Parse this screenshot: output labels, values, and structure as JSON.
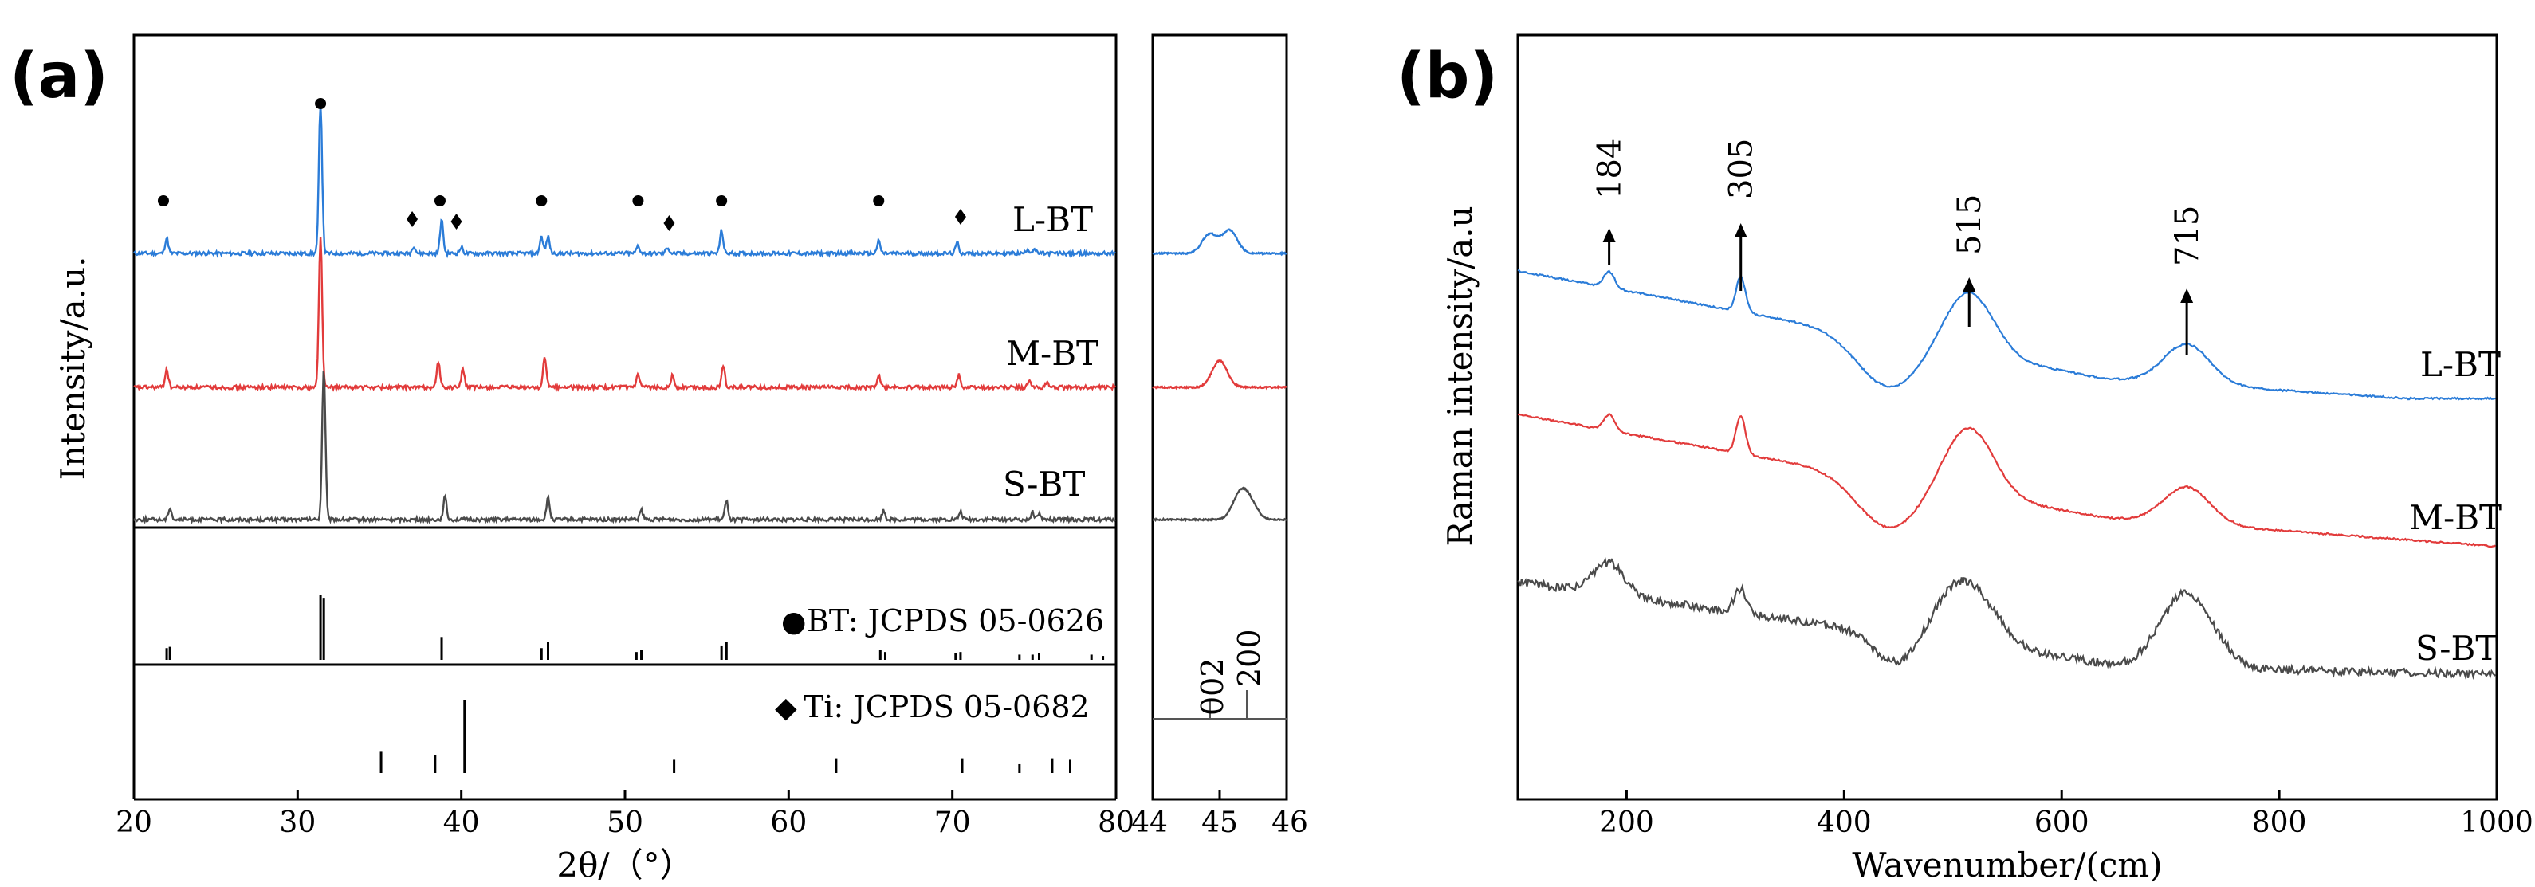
{
  "colors": {
    "L-BT": "#2b7cd8",
    "M-BT": "#e23b3b",
    "S-BT": "#4a4a4a",
    "frame": "#000000"
  },
  "chart_data": [
    {
      "panel": "(a)",
      "type": "line",
      "xlabel": "2θ/（°）",
      "ylabel": "Intensity/a.u.",
      "xlim": [
        20,
        80
      ],
      "xticks": [
        20,
        30,
        40,
        50,
        60,
        70,
        80
      ],
      "series": [
        {
          "name": "L-BT",
          "color": "L-BT",
          "offset": 2,
          "peaks": [
            [
              22.0,
              0.1
            ],
            [
              31.4,
              1.0
            ],
            [
              37.1,
              0.05
            ],
            [
              38.8,
              0.22
            ],
            [
              40.0,
              0.04
            ],
            [
              44.9,
              0.11
            ],
            [
              45.3,
              0.11
            ],
            [
              50.8,
              0.05
            ],
            [
              52.6,
              0.04
            ],
            [
              55.9,
              0.15
            ],
            [
              65.5,
              0.08
            ],
            [
              70.3,
              0.07
            ],
            [
              74.6,
              0.03
            ],
            [
              75.0,
              0.03
            ]
          ]
        },
        {
          "name": "M-BT",
          "color": "M-BT",
          "offset": 1,
          "peaks": [
            [
              22.0,
              0.12
            ],
            [
              31.4,
              1.0
            ],
            [
              38.6,
              0.17
            ],
            [
              40.1,
              0.12
            ],
            [
              45.1,
              0.2
            ],
            [
              50.8,
              0.08
            ],
            [
              52.9,
              0.08
            ],
            [
              56.0,
              0.15
            ],
            [
              65.5,
              0.08
            ],
            [
              70.4,
              0.08
            ],
            [
              74.7,
              0.04
            ],
            [
              75.8,
              0.03
            ]
          ]
        },
        {
          "name": "S-BT",
          "color": "S-BT",
          "offset": 0,
          "peaks": [
            [
              22.2,
              0.08
            ],
            [
              31.6,
              1.0
            ],
            [
              39.0,
              0.15
            ],
            [
              45.3,
              0.14
            ],
            [
              51.0,
              0.06
            ],
            [
              56.2,
              0.12
            ],
            [
              65.8,
              0.06
            ],
            [
              70.5,
              0.05
            ],
            [
              74.9,
              0.05
            ],
            [
              75.3,
              0.04
            ]
          ]
        }
      ],
      "reference_bt": {
        "label": "BT: JCPDS 05-0626",
        "lines": [
          [
            22.0,
            0.18
          ],
          [
            22.2,
            0.2
          ],
          [
            31.4,
            1.0
          ],
          [
            31.6,
            0.95
          ],
          [
            38.8,
            0.35
          ],
          [
            44.9,
            0.18
          ],
          [
            45.3,
            0.28
          ],
          [
            50.7,
            0.12
          ],
          [
            51.0,
            0.15
          ],
          [
            55.9,
            0.22
          ],
          [
            56.2,
            0.28
          ],
          [
            65.6,
            0.15
          ],
          [
            65.9,
            0.12
          ],
          [
            70.2,
            0.1
          ],
          [
            70.5,
            0.12
          ],
          [
            74.1,
            0.08
          ],
          [
            74.9,
            0.08
          ],
          [
            75.3,
            0.1
          ],
          [
            78.5,
            0.08
          ],
          [
            79.2,
            0.06
          ]
        ]
      },
      "reference_ti": {
        "label": "Ti: JCPDS 05-0682",
        "lines": [
          [
            35.1,
            0.3
          ],
          [
            38.4,
            0.25
          ],
          [
            40.2,
            1.0
          ],
          [
            53.0,
            0.18
          ],
          [
            62.9,
            0.2
          ],
          [
            70.6,
            0.2
          ],
          [
            74.1,
            0.12
          ],
          [
            76.1,
            0.2
          ],
          [
            77.2,
            0.18
          ]
        ]
      },
      "markers": {
        "circle_BT": [
          [
            21.8,
            "L-BT"
          ],
          [
            31.4,
            "L-BT"
          ],
          [
            38.7,
            "L-BT"
          ],
          [
            44.9,
            "L-BT"
          ],
          [
            50.8,
            "L-BT"
          ],
          [
            55.9,
            "L-BT"
          ],
          [
            65.5,
            "L-BT"
          ]
        ],
        "diamond_Ti": [
          [
            37.0,
            "L-BT"
          ],
          [
            39.7,
            "L-BT"
          ],
          [
            52.7,
            "L-BT"
          ],
          [
            70.5,
            "L-BT"
          ]
        ]
      }
    },
    {
      "panel": "inset",
      "type": "line",
      "xlim": [
        44,
        46
      ],
      "xticks": [
        "44",
        "45",
        "46"
      ],
      "series": [
        {
          "name": "L-BT",
          "color": "L-BT",
          "peaks": [
            [
              44.85,
              0.5
            ],
            [
              45.15,
              0.6
            ]
          ]
        },
        {
          "name": "M-BT",
          "color": "M-BT",
          "peaks": [
            [
              45.0,
              0.7
            ]
          ]
        },
        {
          "name": "S-BT",
          "color": "S-BT",
          "peaks": [
            [
              45.3,
              0.6
            ],
            [
              45.45,
              0.4
            ]
          ]
        }
      ],
      "reference_labels": [
        {
          "hkl": "002",
          "x": 44.85
        },
        {
          "hkl": "200",
          "x": 45.4
        }
      ]
    },
    {
      "panel": "(b)",
      "type": "line",
      "xlabel": "Wavenumber/(cm)",
      "ylabel": "Raman intensity/a.u",
      "xlim": [
        100,
        1000
      ],
      "xticks": [
        200,
        400,
        600,
        800,
        1000
      ],
      "peak_labels": [
        "184",
        "305",
        "515",
        "715"
      ],
      "peak_positions": [
        184,
        305,
        515,
        715
      ],
      "series": [
        {
          "name": "L-BT",
          "color": "L-BT"
        },
        {
          "name": "M-BT",
          "color": "M-BT"
        },
        {
          "name": "S-BT",
          "color": "S-BT"
        }
      ]
    }
  ],
  "labels": {
    "panel_a": "(a)",
    "panel_b": "(b)",
    "series_a": [
      "L-BT",
      "M-BT",
      "S-BT"
    ],
    "series_b": [
      "L-BT",
      "M-BT",
      "S-BT"
    ],
    "ref_bt_symbol": "●",
    "ref_ti_symbol": "◆",
    "ref_bt_text": "BT: JCPDS 05-0626",
    "ref_ti_text": "Ti: JCPDS 05-0682",
    "inset_hkl_002": "002",
    "inset_hkl_200": "200",
    "xlabel_a": "2θ/（°）",
    "ylabel_a": "Intensity/a.u.",
    "xlabel_b": "Wavenumber/(cm)",
    "ylabel_b": "Raman intensity/a.u"
  }
}
